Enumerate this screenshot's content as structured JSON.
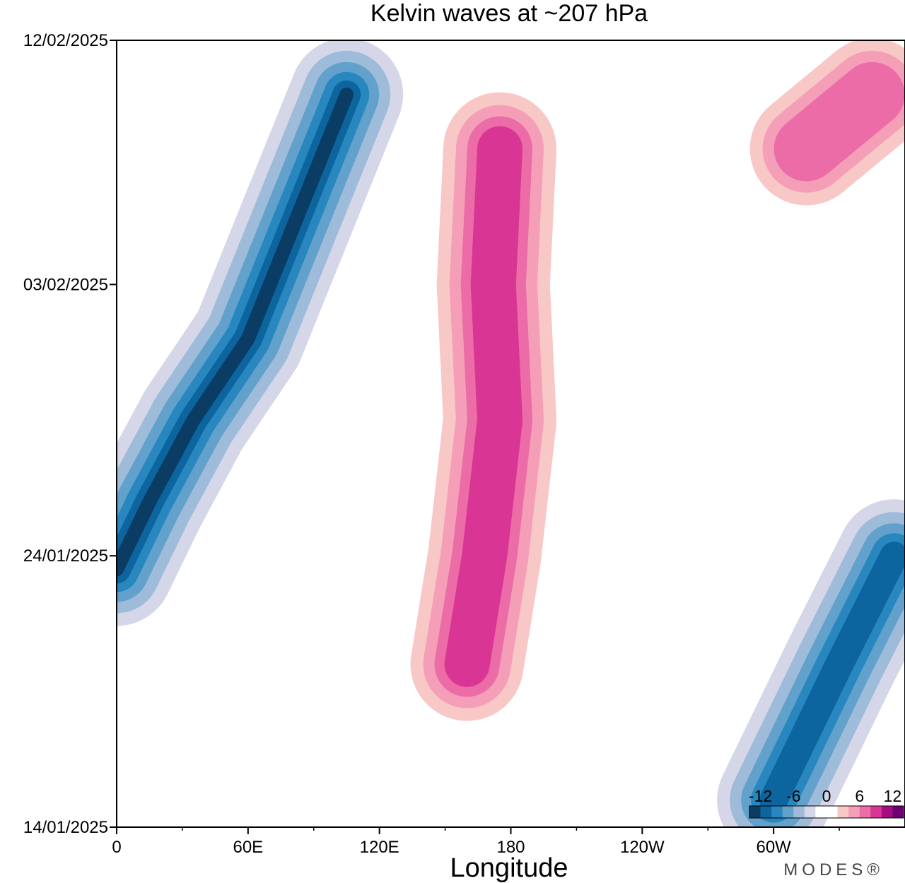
{
  "chart_data": {
    "type": "heatmap",
    "title": "Kelvin waves at ~207 hPa",
    "xlabel": "Longitude",
    "ylabel": "",
    "x_ticks": [
      "0",
      "60E",
      "120E",
      "180",
      "120W",
      "60W"
    ],
    "x_tick_values": [
      0,
      60,
      120,
      180,
      240,
      300
    ],
    "xlim": [
      0,
      360
    ],
    "y_ticks": [
      "12/02/2025",
      "03/02/2025",
      "24/01/2025",
      "14/01/2025"
    ],
    "y_tick_days": [
      29,
      20,
      10,
      0
    ],
    "ylim_dates": [
      "14/01/2025",
      "12/02/2025"
    ],
    "colorbar": {
      "levels": [
        -14,
        -12,
        -10,
        -8,
        -6,
        -4,
        -2,
        0,
        2,
        4,
        6,
        8,
        10,
        12,
        14
      ],
      "labels": [
        "-12",
        "-6",
        "0",
        "6",
        "12"
      ],
      "label_values": [
        -12,
        -6,
        0,
        6,
        12
      ],
      "colors": [
        "#0b3d64",
        "#0d659f",
        "#2887be",
        "#62a1cb",
        "#9ebcda",
        "#d5d7e8",
        "#ffffff",
        "#ffffff",
        "#f8c8c6",
        "#f59eb7",
        "#ec6ca8",
        "#d93594",
        "#a50e82",
        "#6e0071"
      ]
    },
    "features": [
      {
        "name": "negative-band-west",
        "sign": "negative",
        "peak": -12,
        "points": [
          [
            0,
            9.5
          ],
          [
            15,
            12
          ],
          [
            35,
            15
          ],
          [
            60,
            18
          ],
          [
            80,
            22
          ],
          [
            105,
            27
          ]
        ]
      },
      {
        "name": "negative-band-east",
        "sign": "negative",
        "peak": -10,
        "points": [
          [
            300,
            1
          ],
          [
            330,
            6
          ],
          [
            355,
            10
          ]
        ]
      },
      {
        "name": "positive-band-central",
        "sign": "positive",
        "peak": 8,
        "points": [
          [
            160,
            6
          ],
          [
            168,
            10
          ],
          [
            175,
            15
          ],
          [
            172,
            20
          ],
          [
            175,
            25
          ]
        ]
      },
      {
        "name": "positive-region-northeast",
        "sign": "positive",
        "peak": 6,
        "points": [
          [
            315,
            25
          ],
          [
            345,
            27
          ]
        ]
      }
    ]
  },
  "brand": "MODES®"
}
